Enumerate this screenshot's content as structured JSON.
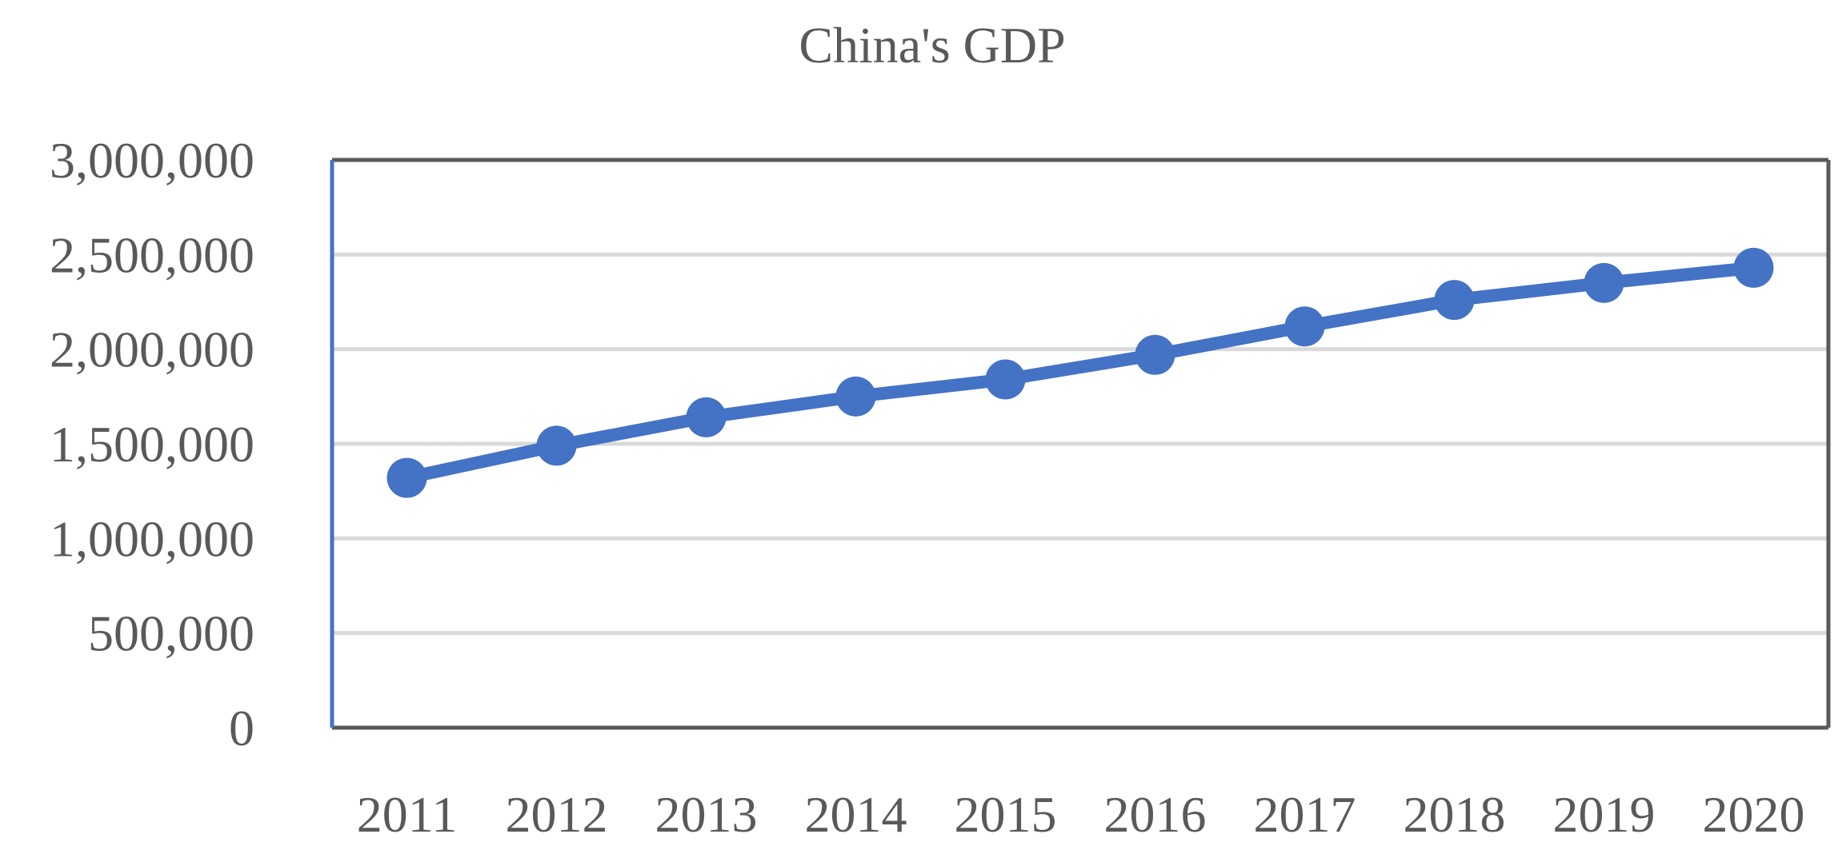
{
  "chart_data": {
    "type": "line",
    "title": "China's GDP",
    "categories": [
      "2011",
      "2012",
      "2013",
      "2014",
      "2015",
      "2016",
      "2017",
      "2018",
      "2019",
      "2020"
    ],
    "series": [
      {
        "values": [
          1320000,
          1490000,
          1640000,
          1750000,
          1840000,
          1970000,
          2120000,
          2260000,
          2350000,
          2430000
        ]
      }
    ],
    "ylim": [
      0,
      3000000
    ],
    "yticks": [
      0,
      500000,
      1000000,
      1500000,
      2000000,
      2500000,
      3000000
    ],
    "ytick_labels": [
      "0",
      "500,000",
      "1,000,000",
      "1,500,000",
      "2,000,000",
      "2,500,000",
      "3,000,000"
    ],
    "grid": true,
    "series_color": "#4472C4",
    "grid_color": "#D9D9D9",
    "text_color": "#595959"
  }
}
